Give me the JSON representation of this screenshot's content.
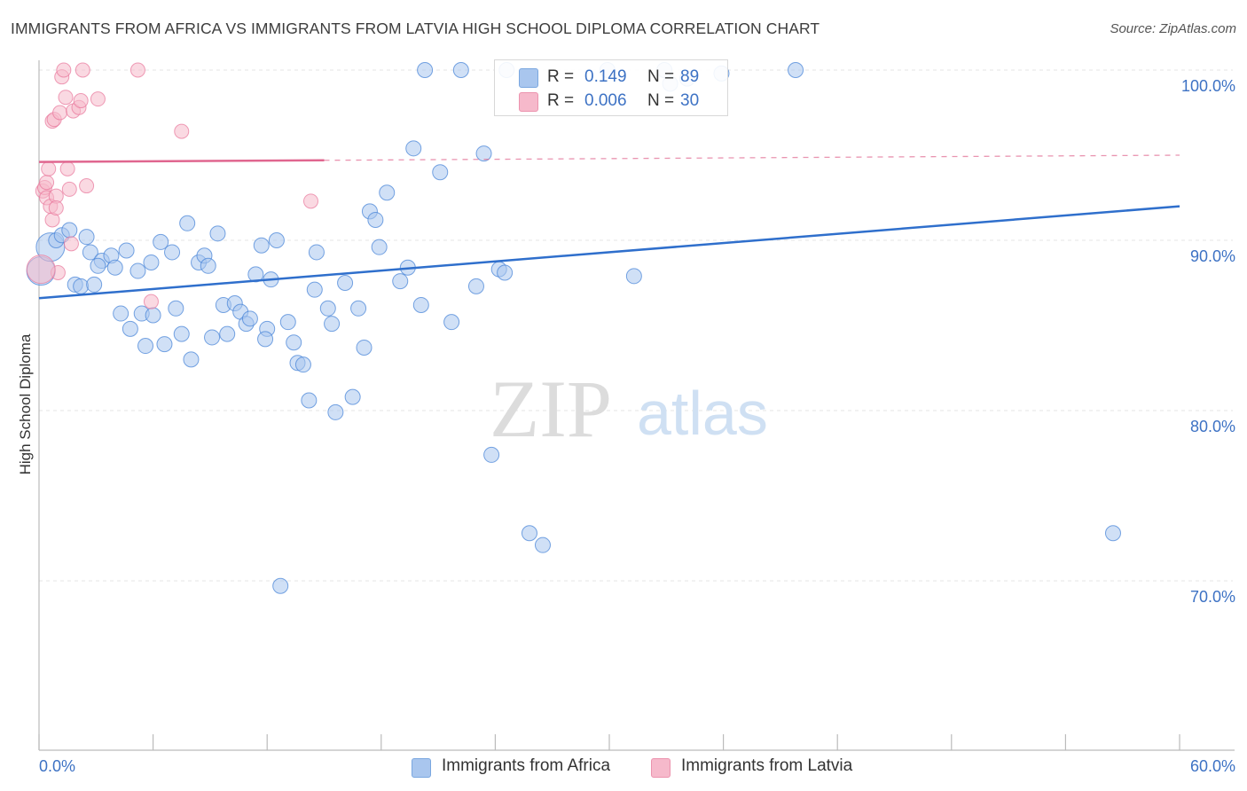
{
  "header": {
    "title": "IMMIGRANTS FROM AFRICA VS IMMIGRANTS FROM LATVIA HIGH SCHOOL DIPLOMA CORRELATION CHART",
    "source": "Source: ZipAtlas.com"
  },
  "watermark": {
    "zip": "ZIP",
    "atlas": "atlas"
  },
  "legend": {
    "rows": [
      {
        "r_label": "R =",
        "r_value": "0.149",
        "n_label": "N =",
        "n_value": "89",
        "color": "#a9c6ee"
      },
      {
        "r_label": "R =",
        "r_value": "0.006",
        "n_label": "N =",
        "n_value": "30",
        "color": "#f6b9cb"
      }
    ]
  },
  "bottom_legend": [
    {
      "label": "Immigrants from Africa",
      "color": "#a9c6ee"
    },
    {
      "label": "Immigrants from Latvia",
      "color": "#f6b9cb"
    }
  ],
  "chart_data": {
    "type": "scatter",
    "title": "IMMIGRANTS FROM AFRICA VS IMMIGRANTS FROM LATVIA HIGH SCHOOL DIPLOMA CORRELATION CHART",
    "xlabel": "",
    "ylabel": "High School Diploma",
    "xlim": [
      0,
      60
    ],
    "ylim": [
      61,
      100.8
    ],
    "x_tick_labels": [
      "0.0%",
      "60.0%"
    ],
    "y_ticks": [
      70,
      80,
      90,
      100
    ],
    "y_tick_labels": [
      "70.0%",
      "80.0%",
      "90.0%",
      "100.0%"
    ],
    "grid": true,
    "legend_position": "top-center",
    "colors": {
      "africa": "#4a86d8",
      "africa_fill": "#a9c6ee",
      "latvia": "#e8759a",
      "latvia_fill": "#f6b9cb",
      "tick_text": "#3d72c4"
    },
    "series": [
      {
        "name": "Immigrants from Africa",
        "trend": {
          "x": [
            0,
            60
          ],
          "y": [
            86.6,
            92.0
          ],
          "style": "solid"
        },
        "points": [
          [
            0.1,
            88.2
          ],
          [
            0.6,
            89.6
          ],
          [
            0.9,
            90.0
          ],
          [
            1.2,
            90.3
          ],
          [
            1.6,
            90.6
          ],
          [
            1.9,
            87.4
          ],
          [
            2.2,
            87.3
          ],
          [
            2.9,
            87.4
          ],
          [
            2.5,
            90.2
          ],
          [
            2.7,
            89.3
          ],
          [
            3.3,
            88.8
          ],
          [
            3.8,
            89.1
          ],
          [
            4.0,
            88.4
          ],
          [
            4.6,
            89.4
          ],
          [
            4.3,
            85.7
          ],
          [
            4.8,
            84.8
          ],
          [
            5.2,
            88.2
          ],
          [
            5.4,
            85.7
          ],
          [
            5.6,
            83.8
          ],
          [
            5.9,
            88.7
          ],
          [
            6.0,
            85.6
          ],
          [
            6.4,
            89.9
          ],
          [
            6.6,
            83.9
          ],
          [
            7.0,
            89.3
          ],
          [
            7.2,
            86.0
          ],
          [
            7.5,
            84.5
          ],
          [
            7.8,
            91.0
          ],
          [
            8.0,
            83.0
          ],
          [
            8.4,
            88.7
          ],
          [
            8.7,
            89.1
          ],
          [
            8.9,
            88.5
          ],
          [
            9.1,
            84.3
          ],
          [
            9.4,
            90.4
          ],
          [
            9.9,
            84.5
          ],
          [
            9.7,
            86.2
          ],
          [
            10.3,
            86.3
          ],
          [
            10.6,
            85.8
          ],
          [
            10.9,
            85.1
          ],
          [
            11.1,
            85.4
          ],
          [
            11.4,
            88.0
          ],
          [
            11.7,
            89.7
          ],
          [
            12.0,
            84.8
          ],
          [
            12.2,
            87.7
          ],
          [
            12.5,
            90.0
          ],
          [
            12.7,
            69.7
          ],
          [
            13.1,
            85.2
          ],
          [
            13.4,
            84.0
          ],
          [
            13.6,
            82.8
          ],
          [
            13.9,
            82.7
          ],
          [
            14.2,
            80.6
          ],
          [
            14.5,
            87.1
          ],
          [
            14.6,
            89.3
          ],
          [
            15.2,
            86.0
          ],
          [
            15.4,
            85.1
          ],
          [
            15.6,
            79.9
          ],
          [
            16.1,
            87.5
          ],
          [
            16.5,
            80.8
          ],
          [
            16.8,
            86.0
          ],
          [
            17.1,
            83.7
          ],
          [
            17.4,
            91.7
          ],
          [
            17.7,
            91.2
          ],
          [
            17.9,
            89.6
          ],
          [
            18.3,
            92.8
          ],
          [
            19.0,
            87.6
          ],
          [
            19.4,
            88.4
          ],
          [
            19.7,
            95.4
          ],
          [
            20.1,
            86.2
          ],
          [
            20.3,
            100.0
          ],
          [
            21.1,
            94.0
          ],
          [
            21.7,
            85.2
          ],
          [
            22.2,
            100.0
          ],
          [
            23.0,
            87.3
          ],
          [
            23.4,
            95.1
          ],
          [
            23.8,
            77.4
          ],
          [
            24.2,
            88.3
          ],
          [
            24.5,
            88.1
          ],
          [
            24.6,
            100.0
          ],
          [
            25.8,
            72.8
          ],
          [
            26.5,
            72.1
          ],
          [
            29.9,
            100.0
          ],
          [
            31.3,
            87.9
          ],
          [
            32.9,
            100.0
          ],
          [
            35.9,
            99.8
          ],
          [
            39.8,
            100.0
          ],
          [
            34.1,
            99.5
          ],
          [
            33.2,
            99.2
          ],
          [
            11.9,
            84.2
          ],
          [
            3.1,
            88.5
          ],
          [
            56.5,
            72.8
          ]
        ]
      },
      {
        "name": "Immigrants from Latvia",
        "trend": {
          "x": [
            0,
            15
          ],
          "y": [
            94.6,
            94.7
          ],
          "style": "solid",
          "dashed_extension_to_x": 60,
          "dashed_end_y": 95.0
        },
        "points": [
          [
            0.2,
            92.9
          ],
          [
            0.3,
            93.1
          ],
          [
            0.4,
            92.5
          ],
          [
            0.4,
            93.4
          ],
          [
            0.5,
            94.2
          ],
          [
            0.6,
            92.0
          ],
          [
            0.7,
            91.2
          ],
          [
            0.7,
            97.0
          ],
          [
            0.8,
            97.1
          ],
          [
            0.9,
            92.6
          ],
          [
            1.0,
            88.1
          ],
          [
            1.1,
            97.5
          ],
          [
            1.2,
            99.6
          ],
          [
            1.3,
            100.0
          ],
          [
            1.4,
            98.4
          ],
          [
            1.5,
            94.2
          ],
          [
            1.6,
            93.0
          ],
          [
            1.8,
            97.6
          ],
          [
            2.1,
            97.8
          ],
          [
            2.2,
            98.2
          ],
          [
            2.3,
            100.0
          ],
          [
            2.5,
            93.2
          ],
          [
            3.1,
            98.3
          ],
          [
            5.2,
            100.0
          ],
          [
            5.9,
            86.4
          ],
          [
            7.5,
            96.4
          ],
          [
            14.3,
            92.3
          ],
          [
            0.1,
            88.3
          ],
          [
            1.7,
            89.8
          ],
          [
            0.9,
            91.9
          ]
        ]
      }
    ]
  }
}
